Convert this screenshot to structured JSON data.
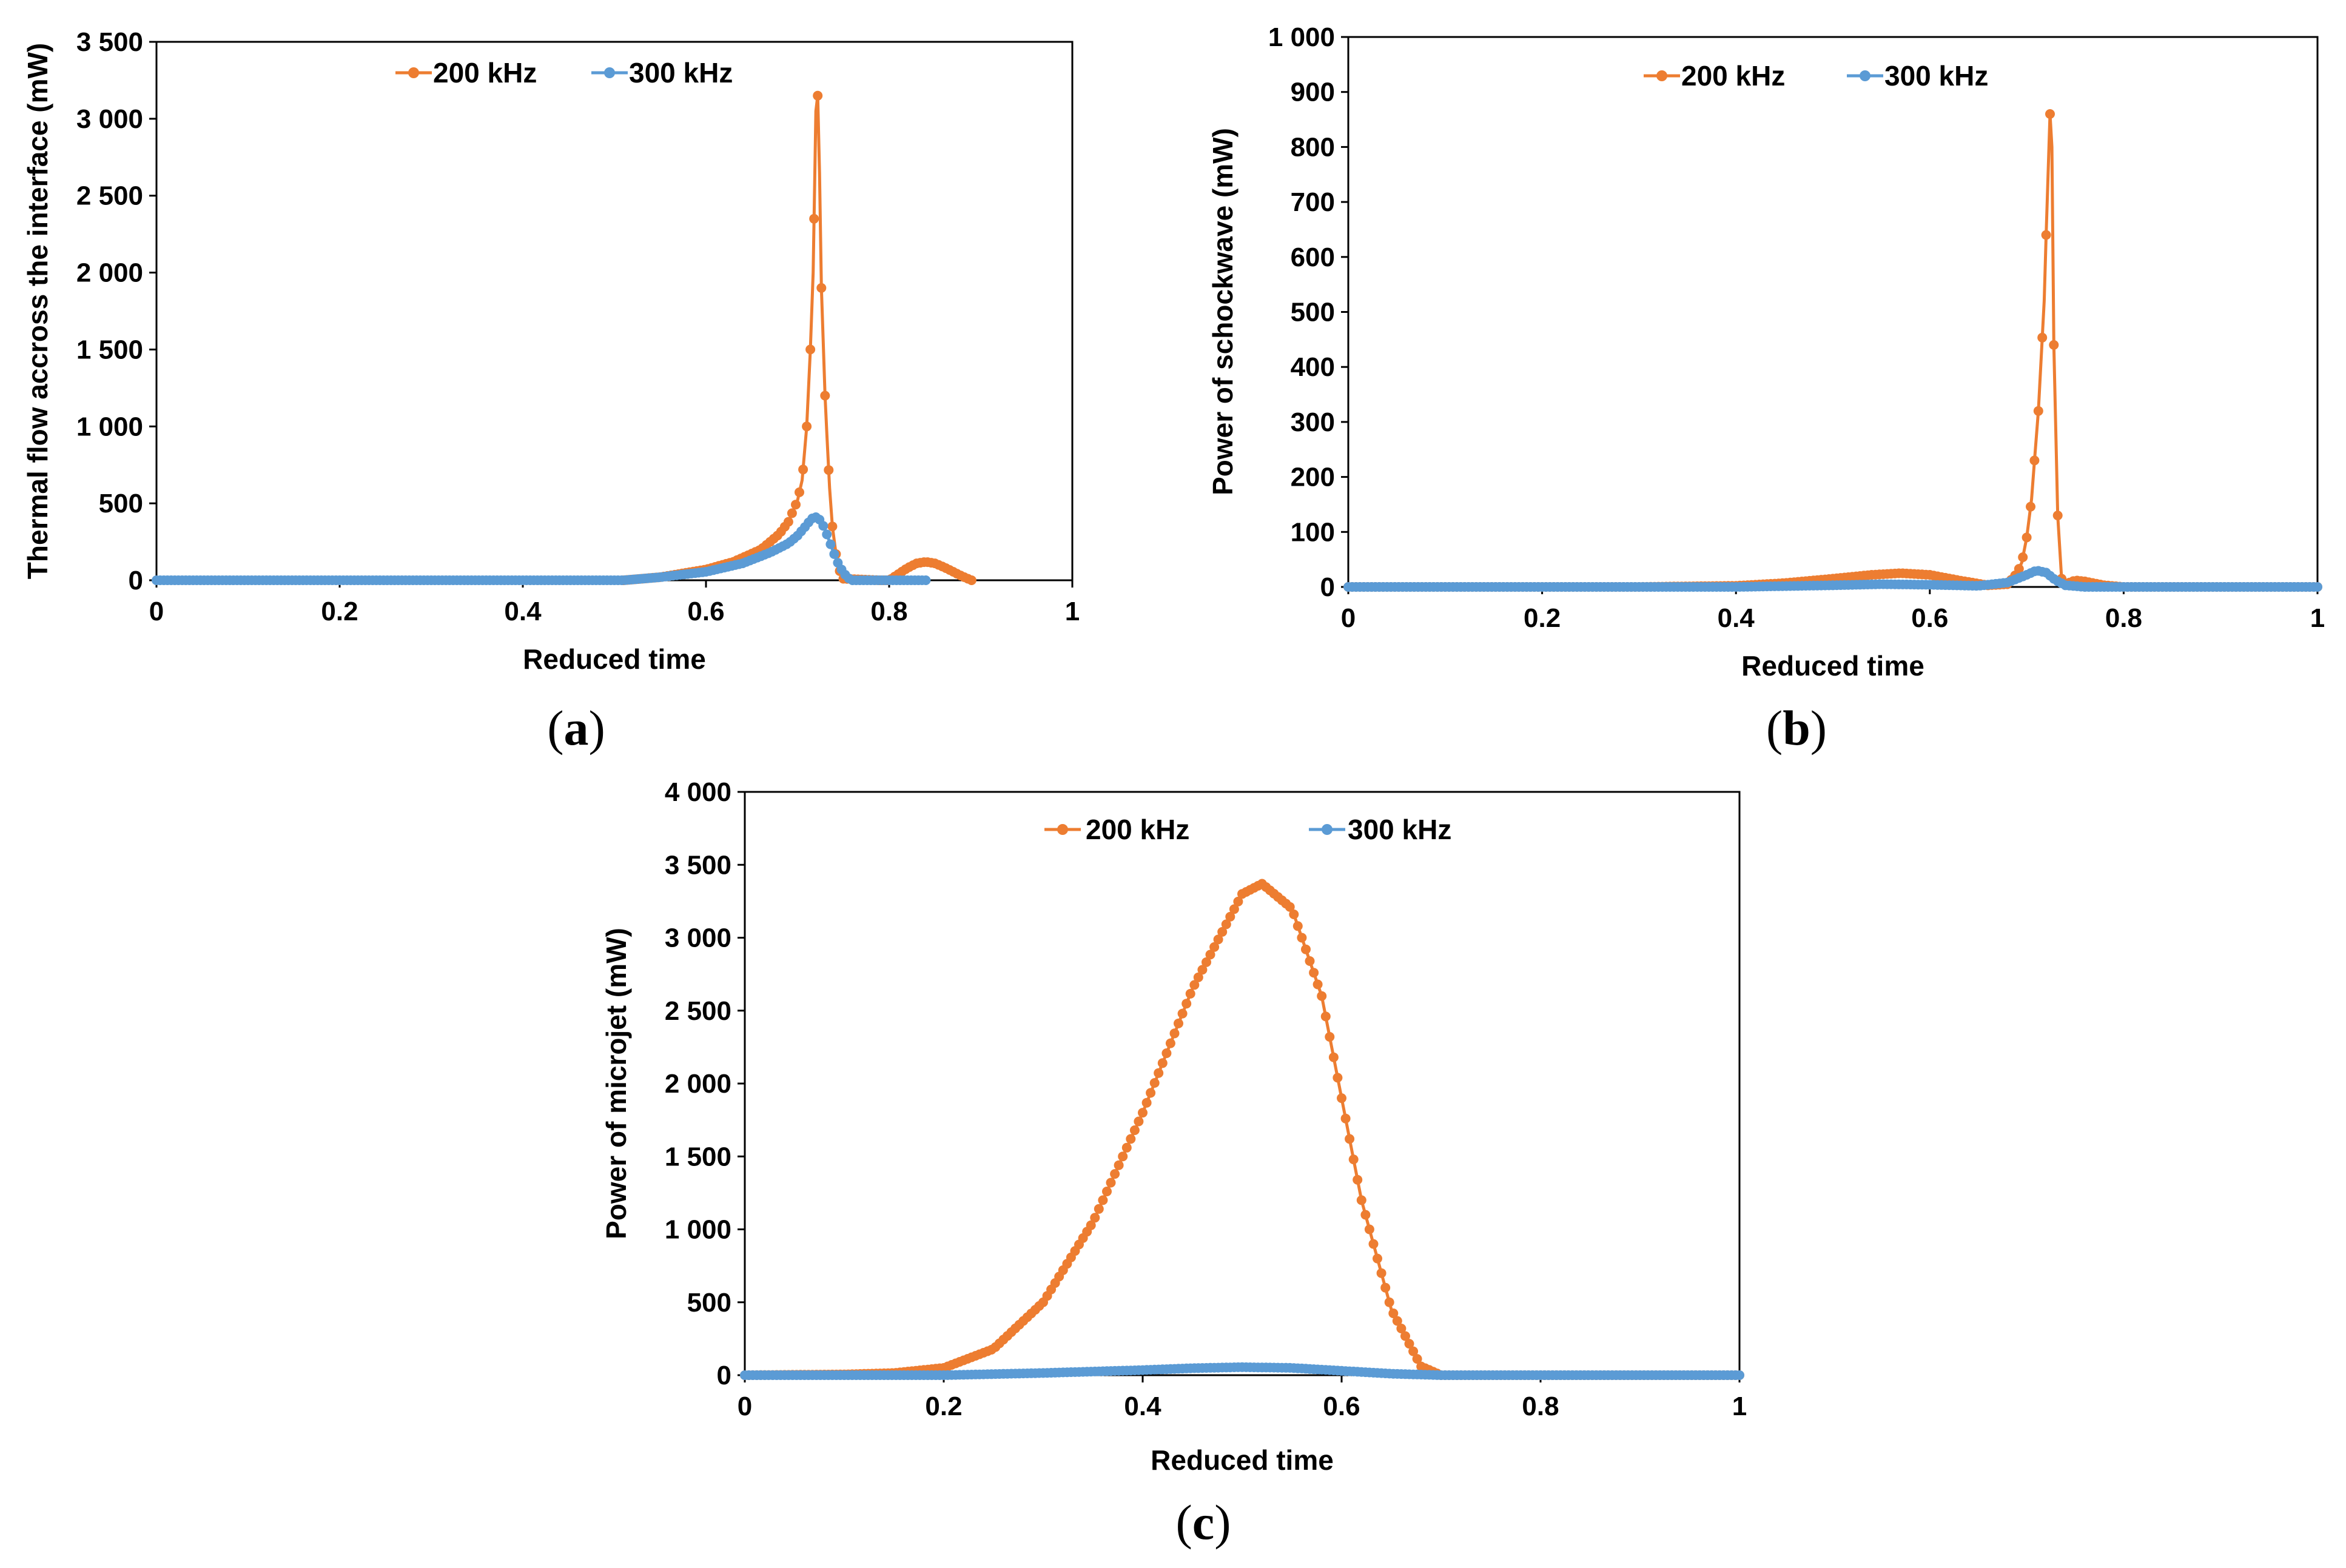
{
  "colors": {
    "orange": "#ED7D31",
    "blue": "#5B9BD5",
    "axis": "#000000"
  },
  "chart_data": [
    {
      "id": "a",
      "type": "line",
      "caption": "a",
      "title": "",
      "xlabel": "Reduced time",
      "ylabel": "Thermal flow accross the interface (mW)",
      "xlim": [
        0,
        1
      ],
      "ylim": [
        0,
        3500
      ],
      "x_ticks": [
        0,
        0.2,
        0.4,
        0.6,
        0.8,
        1
      ],
      "x_tick_labels": [
        "0",
        "0.2",
        "0.4",
        "0.6",
        "0.8",
        "1"
      ],
      "y_ticks": [
        0,
        500,
        1000,
        1500,
        2000,
        2500,
        3000,
        3500
      ],
      "y_tick_labels": [
        "0",
        "500",
        "1 000",
        "1 500",
        "2 000",
        "2 500",
        "3 000",
        "3 500"
      ],
      "legend": [
        "200 kHz",
        "300 kHz"
      ],
      "series": [
        {
          "name": "200 kHz",
          "color": "#ED7D31",
          "x": [
            0.51,
            0.55,
            0.6,
            0.63,
            0.66,
            0.68,
            0.69,
            0.7,
            0.705,
            0.71,
            0.714,
            0.717,
            0.72,
            0.722,
            0.724,
            0.726,
            0.728,
            0.73,
            0.732,
            0.735,
            0.738,
            0.742,
            0.746,
            0.75,
            0.79,
            0.8,
            0.81,
            0.82,
            0.83,
            0.84,
            0.85,
            0.86,
            0.87,
            0.88,
            0.89
          ],
          "y": [
            0,
            20,
            70,
            120,
            200,
            300,
            380,
            520,
            650,
            1000,
            1500,
            2000,
            3050,
            3150,
            2650,
            1900,
            1550,
            1200,
            950,
            600,
            350,
            170,
            60,
            10,
            0,
            0,
            40,
            80,
            110,
            120,
            110,
            85,
            55,
            25,
            0
          ]
        },
        {
          "name": "300 kHz",
          "color": "#5B9BD5",
          "x": [
            0,
            0.51,
            0.55,
            0.6,
            0.64,
            0.67,
            0.69,
            0.7,
            0.71,
            0.715,
            0.72,
            0.725,
            0.73,
            0.735,
            0.74,
            0.745,
            0.75,
            0.755,
            0.76,
            0.84
          ],
          "y": [
            0,
            0,
            20,
            55,
            110,
            180,
            240,
            290,
            360,
            400,
            410,
            390,
            330,
            250,
            170,
            100,
            50,
            15,
            0,
            0
          ]
        }
      ]
    },
    {
      "id": "b",
      "type": "line",
      "caption": "b",
      "title": "",
      "xlabel": "Reduced time",
      "ylabel": "Power of schockwave (mW)",
      "xlim": [
        0,
        1
      ],
      "ylim": [
        0,
        1000
      ],
      "x_ticks": [
        0,
        0.2,
        0.4,
        0.6,
        0.8,
        1
      ],
      "x_tick_labels": [
        "0",
        "0.2",
        "0.4",
        "0.6",
        "0.8",
        "1"
      ],
      "y_ticks": [
        0,
        100,
        200,
        300,
        400,
        500,
        600,
        700,
        800,
        900,
        1000
      ],
      "y_tick_labels": [
        "0",
        "100",
        "200",
        "300",
        "400",
        "500",
        "600",
        "700",
        "800",
        "900",
        "1 000"
      ],
      "legend": [
        "200 kHz",
        "300 kHz"
      ],
      "series": [
        {
          "name": "200 kHz",
          "color": "#ED7D31",
          "x": [
            0,
            0.3,
            0.4,
            0.45,
            0.5,
            0.54,
            0.57,
            0.6,
            0.63,
            0.66,
            0.68,
            0.69,
            0.695,
            0.7,
            0.705,
            0.708,
            0.712,
            0.715,
            0.718,
            0.72,
            0.722,
            0.724,
            0.726,
            0.728,
            0.732,
            0.736,
            0.74,
            0.75,
            0.76,
            0.78,
            0.8,
            1
          ],
          "y": [
            0,
            0,
            2,
            7,
            15,
            22,
            25,
            22,
            12,
            3,
            5,
            25,
            45,
            90,
            160,
            230,
            320,
            420,
            520,
            640,
            750,
            860,
            800,
            440,
            130,
            15,
            5,
            12,
            10,
            3,
            0,
            0
          ]
        },
        {
          "name": "300 kHz",
          "color": "#5B9BD5",
          "x": [
            0,
            0.4,
            0.5,
            0.55,
            0.6,
            0.65,
            0.68,
            0.7,
            0.71,
            0.72,
            0.73,
            0.74,
            0.76,
            1
          ],
          "y": [
            0,
            0,
            3,
            5,
            4,
            2,
            8,
            22,
            30,
            26,
            12,
            3,
            0,
            0
          ]
        }
      ]
    },
    {
      "id": "c",
      "type": "line",
      "caption": "c",
      "title": "",
      "xlabel": "Reduced time",
      "ylabel": "Power of microjet (mW)",
      "xlim": [
        0,
        1
      ],
      "ylim": [
        0,
        4000
      ],
      "x_ticks": [
        0,
        0.2,
        0.4,
        0.6,
        0.8,
        1
      ],
      "x_tick_labels": [
        "0",
        "0.2",
        "0.4",
        "0.6",
        "0.8",
        "1"
      ],
      "y_ticks": [
        0,
        500,
        1000,
        1500,
        2000,
        2500,
        3000,
        3500,
        4000
      ],
      "y_tick_labels": [
        "0",
        "500",
        "1 000",
        "1 500",
        "2 000",
        "2 500",
        "3 000",
        "3 500",
        "4 000"
      ],
      "legend": [
        "200 kHz",
        "300 kHz"
      ],
      "series": [
        {
          "name": "200 kHz",
          "color": "#ED7D31",
          "x": [
            0,
            0.1,
            0.15,
            0.2,
            0.25,
            0.3,
            0.35,
            0.4,
            0.45,
            0.5,
            0.52,
            0.55,
            0.58,
            0.6,
            0.62,
            0.65,
            0.68,
            0.7,
            1
          ],
          "y": [
            0,
            5,
            15,
            50,
            180,
            500,
            1050,
            1800,
            2650,
            3300,
            3370,
            3200,
            2600,
            1900,
            1200,
            450,
            60,
            0,
            0
          ]
        },
        {
          "name": "300 kHz",
          "color": "#5B9BD5",
          "x": [
            0,
            0.2,
            0.3,
            0.4,
            0.45,
            0.5,
            0.55,
            0.6,
            0.65,
            0.7,
            1
          ],
          "y": [
            0,
            0,
            15,
            35,
            48,
            55,
            50,
            30,
            10,
            0,
            0
          ]
        }
      ]
    }
  ]
}
